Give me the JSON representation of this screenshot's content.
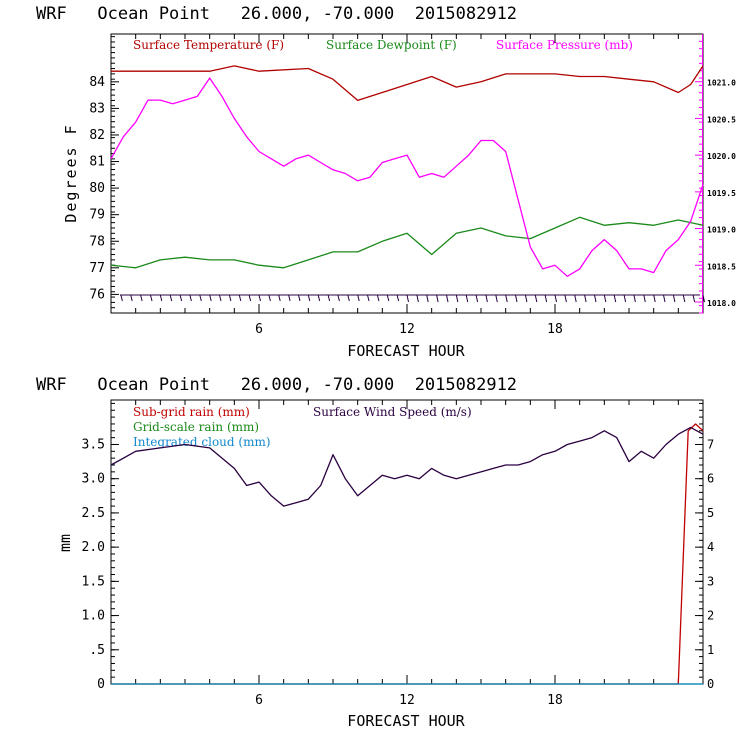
{
  "charts_meta": {
    "top_title": "WRF   Ocean Point   26.000, -70.000  2015082912",
    "bottom_title": "WRF   Ocean Point   26.000, -70.000  2015082912"
  },
  "colors": {
    "temperature": "#b00000",
    "dewpoint": "#1a8a1a",
    "pressure": "#ff00ff",
    "subgrid": "#c00000",
    "gridscale": "#1a8a1a",
    "cloud": "#1188cc",
    "wind": "#2a0040"
  },
  "chart_data": [
    {
      "type": "line",
      "title": "WRF   Ocean Point   26.000, -70.000  2015082912",
      "xlabel": "FORECAST HOUR",
      "ylabel": "Degrees F",
      "xlim": [
        0,
        24
      ],
      "ylim": [
        75.3,
        85.8
      ],
      "y2lim": [
        1017.85,
        1021.65
      ],
      "xticks": [
        "6",
        "12",
        "18"
      ],
      "yticks": [
        "76",
        "77",
        "78",
        "79",
        "80",
        "81",
        "82",
        "83",
        "84"
      ],
      "y2ticks": [
        "1018.0",
        "1018.5",
        "1019.0",
        "1019.5",
        "1020.0",
        "1020.5",
        "1021.0"
      ],
      "legend_position": "top",
      "series": [
        {
          "name": "Surface Temperature (F)",
          "axis": "left",
          "x": [
            0,
            2,
            4,
            5,
            6,
            8,
            9,
            10,
            11,
            12,
            13,
            14,
            15,
            16,
            17,
            18,
            19,
            20,
            21,
            22,
            23,
            23.5,
            24
          ],
          "values": [
            84.4,
            84.4,
            84.4,
            84.6,
            84.4,
            84.5,
            84.1,
            83.3,
            83.6,
            83.9,
            84.2,
            83.8,
            84.0,
            84.3,
            84.3,
            84.3,
            84.2,
            84.2,
            84.1,
            84.0,
            83.6,
            83.9,
            84.6
          ]
        },
        {
          "name": "Surface Dewpoint (F)",
          "axis": "left",
          "x": [
            0,
            1,
            2,
            3,
            4,
            5,
            6,
            7,
            8,
            9,
            10,
            11,
            12,
            13,
            14,
            15,
            16,
            17,
            18,
            19,
            20,
            21,
            22,
            23,
            24
          ],
          "values": [
            77.1,
            77.0,
            77.3,
            77.4,
            77.3,
            77.3,
            77.1,
            77.0,
            77.3,
            77.6,
            77.6,
            78.0,
            78.3,
            77.5,
            78.3,
            78.5,
            78.2,
            78.1,
            78.5,
            78.9,
            78.6,
            78.7,
            78.6,
            78.8,
            78.6
          ]
        },
        {
          "name": "Surface Pressure (mb)",
          "axis": "right",
          "x": [
            0,
            0.5,
            1,
            1.5,
            2,
            2.5,
            3,
            3.5,
            4,
            4.5,
            5,
            5.5,
            6,
            6.5,
            7,
            7.5,
            8,
            8.5,
            9,
            9.5,
            10,
            10.5,
            11,
            11.5,
            12,
            12.5,
            13,
            13.5,
            14,
            14.5,
            15,
            15.5,
            16,
            16.5,
            17,
            17.5,
            18,
            18.5,
            19,
            19.5,
            20,
            20.5,
            21,
            21.5,
            22,
            22.5,
            23,
            23.5,
            24
          ],
          "values": [
            1019.95,
            1020.25,
            1020.45,
            1020.75,
            1020.75,
            1020.7,
            1020.75,
            1020.8,
            1021.05,
            1020.8,
            1020.5,
            1020.25,
            1020.05,
            1019.95,
            1019.85,
            1019.95,
            1020.0,
            1019.9,
            1019.8,
            1019.75,
            1019.65,
            1019.7,
            1019.9,
            1019.95,
            1020.0,
            1019.7,
            1019.75,
            1019.7,
            1019.85,
            1020.0,
            1020.2,
            1020.2,
            1020.05,
            1019.4,
            1018.75,
            1018.45,
            1018.5,
            1018.35,
            1018.45,
            1018.7,
            1018.85,
            1018.7,
            1018.45,
            1018.45,
            1018.4,
            1018.7,
            1018.85,
            1019.1,
            1019.6
          ]
        }
      ]
    },
    {
      "type": "line",
      "title": "WRF   Ocean Point   26.000, -70.000  2015082912",
      "xlabel": "FORECAST HOUR",
      "ylabel": "mm",
      "xlim": [
        0,
        24
      ],
      "ylim": [
        0,
        4.15
      ],
      "y2lim": [
        0,
        8.3
      ],
      "xticks": [
        "6",
        "12",
        "18"
      ],
      "yticks": [
        "0",
        ".5",
        "1.0",
        "1.5",
        "2.0",
        "2.5",
        "3.0",
        "3.5"
      ],
      "y2ticks": [
        "0",
        "1",
        "2",
        "3",
        "4",
        "5",
        "6",
        "7"
      ],
      "legend_position": "top-left",
      "series": [
        {
          "name": "Sub-grid rain (mm)",
          "axis": "left",
          "x": [
            0,
            23.0,
            23.4,
            23.7,
            24
          ],
          "values": [
            0,
            0,
            3.7,
            3.8,
            3.7
          ]
        },
        {
          "name": "Grid-scale rain (mm)",
          "axis": "left",
          "x": [
            0,
            24
          ],
          "values": [
            0,
            0
          ]
        },
        {
          "name": "Integrated cloud (mm)",
          "axis": "left",
          "x": [
            0,
            24
          ],
          "values": [
            0,
            0
          ]
        },
        {
          "name": "Surface Wind Speed (m/s)",
          "axis": "right",
          "x": [
            0,
            1,
            2,
            3,
            4,
            5,
            5.5,
            6,
            6.5,
            7,
            7.5,
            8,
            8.5,
            9,
            9.5,
            10,
            10.5,
            11,
            11.5,
            12,
            12.5,
            13,
            13.5,
            14,
            14.5,
            15,
            15.5,
            16,
            16.5,
            17,
            17.5,
            18,
            18.5,
            19,
            19.5,
            20,
            20.5,
            21,
            21.5,
            22,
            22.5,
            23,
            23.5,
            24
          ],
          "values": [
            6.4,
            6.8,
            6.9,
            7.0,
            6.9,
            6.3,
            5.8,
            5.9,
            5.5,
            5.2,
            5.3,
            5.4,
            5.8,
            6.7,
            6.0,
            5.5,
            5.8,
            6.1,
            6.0,
            6.1,
            6.0,
            6.3,
            6.1,
            6.0,
            6.1,
            6.2,
            6.3,
            6.4,
            6.4,
            6.5,
            6.7,
            6.8,
            7.0,
            7.1,
            7.2,
            7.4,
            7.2,
            6.5,
            6.8,
            6.6,
            7.0,
            7.3,
            7.5,
            7.3
          ]
        }
      ]
    }
  ]
}
